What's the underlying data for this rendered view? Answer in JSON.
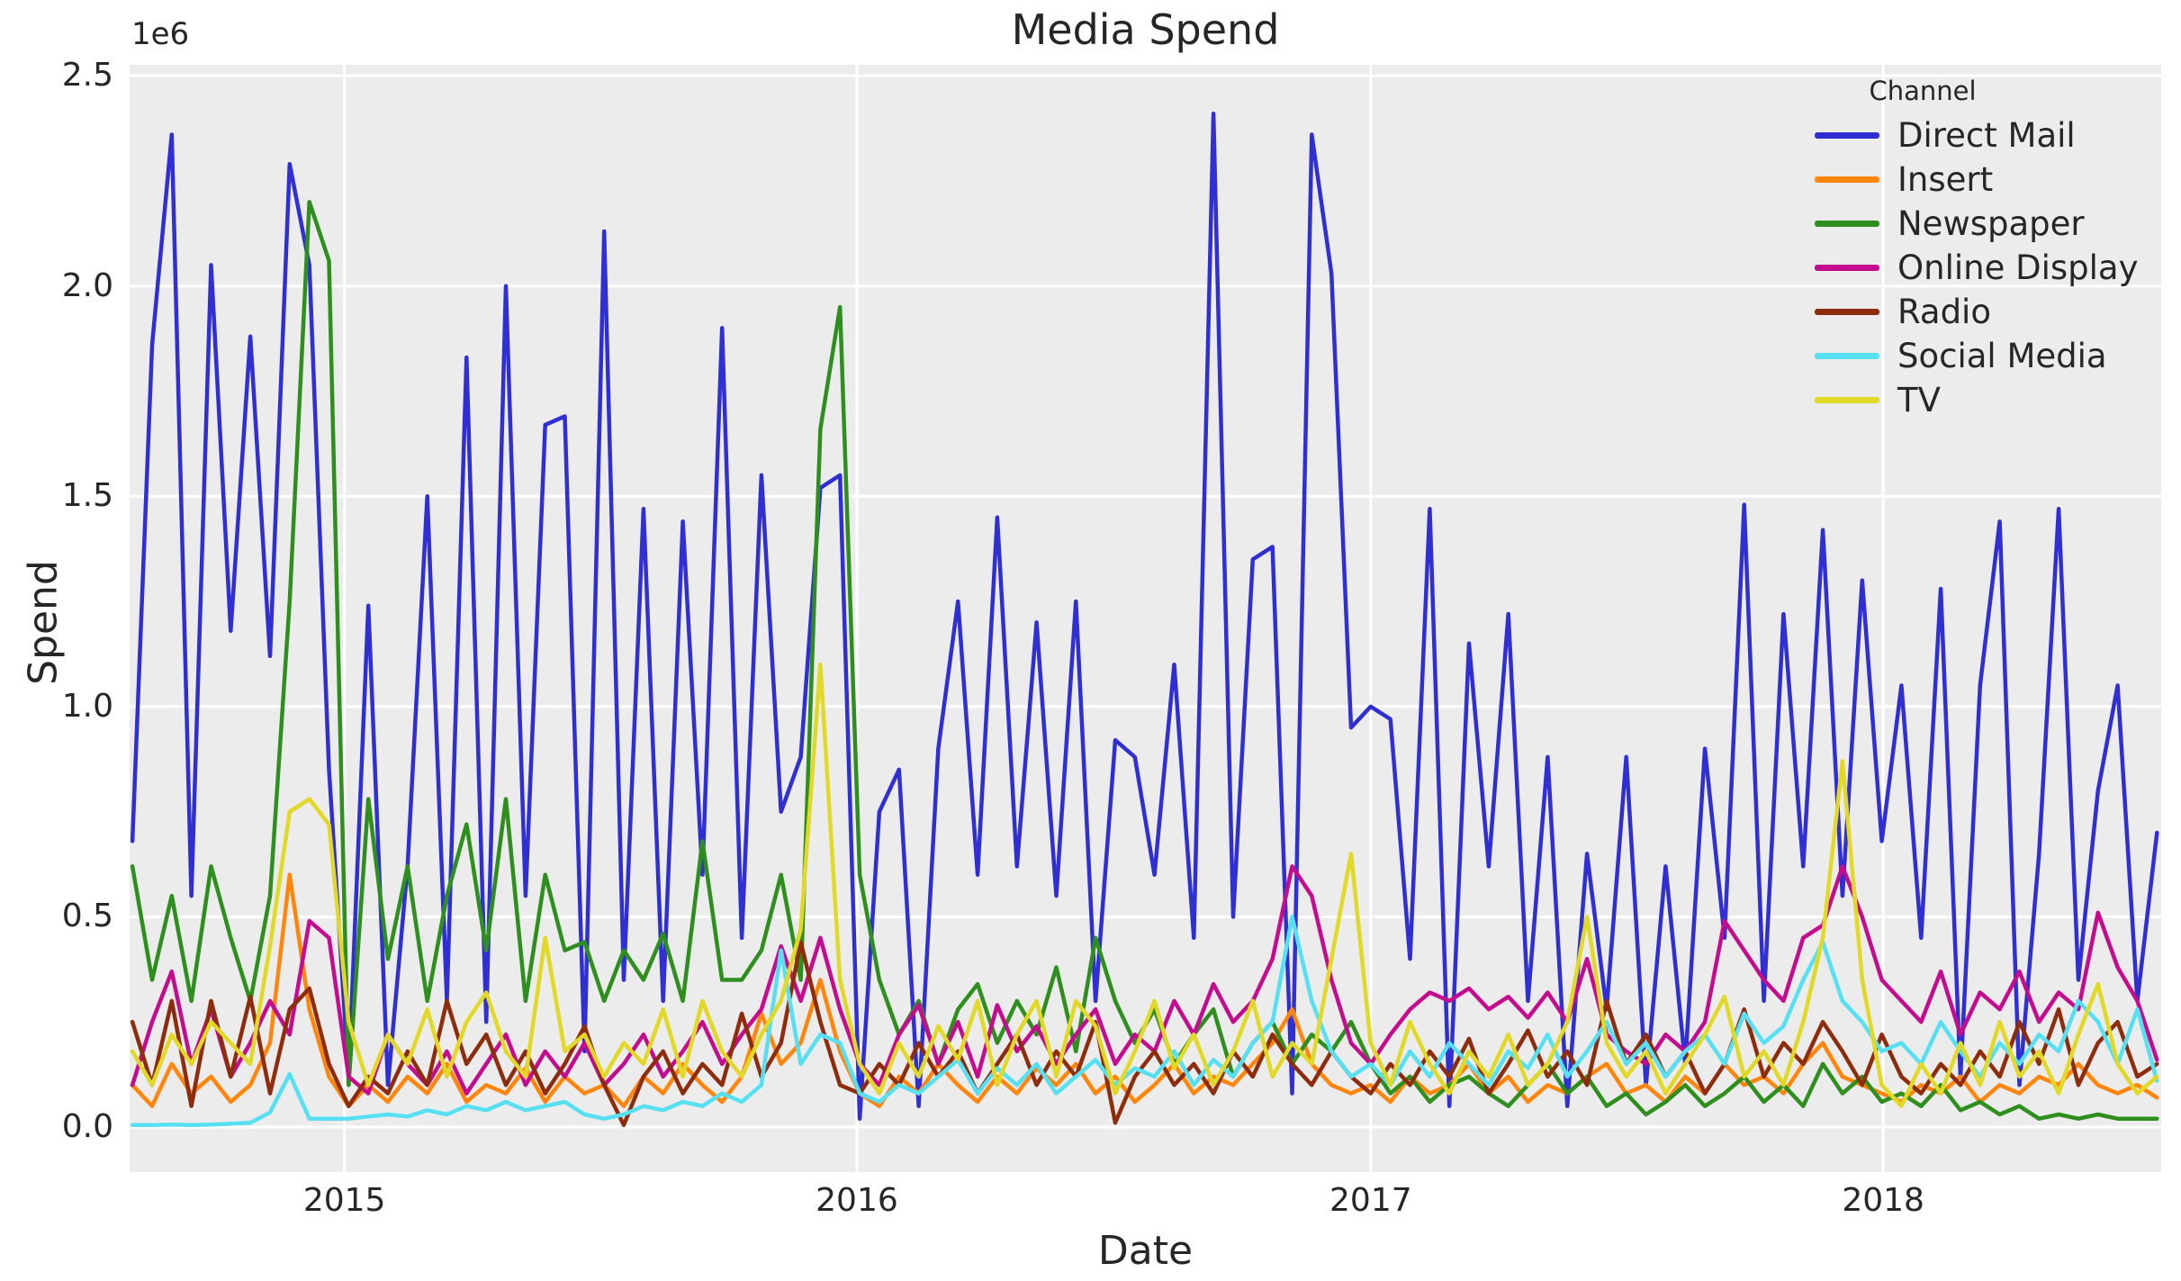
{
  "chart_data": {
    "type": "line",
    "title": "Media Spend",
    "xlabel": "Date",
    "ylabel": "Spend",
    "y_offset_label": "1e6",
    "legend_title": "Channel",
    "legend_position": "upper right",
    "grid": true,
    "plot_background": "#ececec",
    "grid_color": "#ffffff",
    "text_color": "#262626",
    "ylim": [
      -107000,
      2526000
    ],
    "yticks": [
      0,
      500000,
      1000000,
      1500000,
      2000000,
      2500000
    ],
    "ytick_labels": [
      "0.0",
      "0.5",
      "1.0",
      "1.5",
      "2.0",
      "2.5"
    ],
    "xlim": [
      "2014-08-01",
      "2018-07-18"
    ],
    "xticks": [
      "2015-01-01",
      "2016-01-01",
      "2017-01-01",
      "2018-01-01"
    ],
    "xtick_labels": [
      "2015",
      "2016",
      "2017",
      "2018"
    ],
    "x": [
      "2014-08-03",
      "2014-08-17",
      "2014-08-31",
      "2014-09-14",
      "2014-09-28",
      "2014-10-12",
      "2014-10-26",
      "2014-11-09",
      "2014-11-23",
      "2014-12-07",
      "2014-12-21",
      "2015-01-04",
      "2015-01-18",
      "2015-02-01",
      "2015-02-15",
      "2015-03-01",
      "2015-03-15",
      "2015-03-29",
      "2015-04-12",
      "2015-04-26",
      "2015-05-10",
      "2015-05-24",
      "2015-06-07",
      "2015-06-21",
      "2015-07-05",
      "2015-07-19",
      "2015-08-02",
      "2015-08-16",
      "2015-08-30",
      "2015-09-13",
      "2015-09-27",
      "2015-10-11",
      "2015-10-25",
      "2015-11-08",
      "2015-11-22",
      "2015-12-06",
      "2015-12-20",
      "2016-01-03",
      "2016-01-17",
      "2016-01-31",
      "2016-02-14",
      "2016-02-28",
      "2016-03-13",
      "2016-03-27",
      "2016-04-10",
      "2016-04-24",
      "2016-05-08",
      "2016-05-22",
      "2016-06-05",
      "2016-06-19",
      "2016-07-03",
      "2016-07-17",
      "2016-07-31",
      "2016-08-14",
      "2016-08-28",
      "2016-09-11",
      "2016-09-25",
      "2016-10-09",
      "2016-10-23",
      "2016-11-06",
      "2016-11-20",
      "2016-12-04",
      "2016-12-18",
      "2017-01-01",
      "2017-01-15",
      "2017-01-29",
      "2017-02-12",
      "2017-02-26",
      "2017-03-12",
      "2017-03-26",
      "2017-04-09",
      "2017-04-23",
      "2017-05-07",
      "2017-05-21",
      "2017-06-04",
      "2017-06-18",
      "2017-07-02",
      "2017-07-16",
      "2017-07-30",
      "2017-08-13",
      "2017-08-27",
      "2017-09-10",
      "2017-09-24",
      "2017-10-08",
      "2017-10-22",
      "2017-11-05",
      "2017-11-19",
      "2017-12-03",
      "2017-12-17",
      "2017-12-31",
      "2018-01-14",
      "2018-01-28",
      "2018-02-11",
      "2018-02-25",
      "2018-03-11",
      "2018-03-25",
      "2018-04-08",
      "2018-04-22",
      "2018-05-06",
      "2018-05-20",
      "2018-06-03",
      "2018-06-17",
      "2018-07-01",
      "2018-07-15"
    ],
    "series": [
      {
        "name": "Direct Mail",
        "color": "#2f2fd3",
        "values": [
          680000,
          1860000,
          2360000,
          550000,
          2050000,
          1180000,
          1880000,
          1120000,
          2290000,
          2050000,
          850000,
          120000,
          1240000,
          100000,
          620000,
          1500000,
          300000,
          1830000,
          250000,
          2000000,
          550000,
          1670000,
          1690000,
          180000,
          2130000,
          350000,
          1470000,
          300000,
          1440000,
          600000,
          1900000,
          450000,
          1550000,
          750000,
          880000,
          1520000,
          1550000,
          20000,
          750000,
          850000,
          50000,
          900000,
          1250000,
          600000,
          1450000,
          620000,
          1200000,
          550000,
          1250000,
          300000,
          920000,
          880000,
          600000,
          1100000,
          450000,
          2410000,
          500000,
          1350000,
          1380000,
          80000,
          2360000,
          2030000,
          950000,
          1000000,
          970000,
          400000,
          1470000,
          50000,
          1150000,
          620000,
          1220000,
          300000,
          880000,
          50000,
          650000,
          280000,
          880000,
          100000,
          620000,
          150000,
          900000,
          450000,
          1480000,
          300000,
          1220000,
          620000,
          1420000,
          550000,
          1300000,
          680000,
          1050000,
          450000,
          1280000,
          120000,
          1050000,
          1440000,
          100000,
          650000,
          1470000,
          350000,
          800000,
          1050000,
          300000,
          700000
        ]
      },
      {
        "name": "Insert",
        "color": "#ff860d",
        "values": [
          100000,
          50000,
          150000,
          80000,
          120000,
          60000,
          100000,
          200000,
          600000,
          280000,
          120000,
          50000,
          100000,
          60000,
          120000,
          80000,
          150000,
          60000,
          100000,
          80000,
          140000,
          60000,
          120000,
          80000,
          100000,
          50000,
          120000,
          80000,
          150000,
          100000,
          60000,
          120000,
          270000,
          150000,
          200000,
          350000,
          180000,
          80000,
          50000,
          120000,
          80000,
          150000,
          100000,
          60000,
          120000,
          80000,
          140000,
          100000,
          150000,
          80000,
          120000,
          60000,
          100000,
          150000,
          80000,
          120000,
          100000,
          150000,
          200000,
          280000,
          150000,
          100000,
          80000,
          100000,
          60000,
          120000,
          80000,
          100000,
          150000,
          80000,
          120000,
          60000,
          100000,
          80000,
          120000,
          150000,
          80000,
          100000,
          60000,
          120000,
          80000,
          150000,
          100000,
          120000,
          80000,
          150000,
          200000,
          120000,
          100000,
          80000,
          60000,
          100000,
          80000,
          120000,
          60000,
          100000,
          80000,
          120000,
          100000,
          150000,
          100000,
          80000,
          100000,
          70000
        ]
      },
      {
        "name": "Newspaper",
        "color": "#2f8f1e",
        "values": [
          620000,
          350000,
          550000,
          300000,
          620000,
          450000,
          300000,
          550000,
          1250000,
          2200000,
          2060000,
          100000,
          780000,
          400000,
          620000,
          300000,
          550000,
          720000,
          420000,
          780000,
          300000,
          600000,
          420000,
          440000,
          300000,
          420000,
          350000,
          460000,
          300000,
          680000,
          350000,
          350000,
          420000,
          600000,
          350000,
          1660000,
          1950000,
          600000,
          350000,
          220000,
          300000,
          150000,
          280000,
          340000,
          200000,
          300000,
          220000,
          380000,
          180000,
          450000,
          300000,
          200000,
          280000,
          150000,
          220000,
          280000,
          120000,
          200000,
          250000,
          150000,
          220000,
          180000,
          250000,
          150000,
          80000,
          120000,
          60000,
          100000,
          120000,
          80000,
          50000,
          100000,
          150000,
          80000,
          120000,
          50000,
          80000,
          30000,
          60000,
          100000,
          50000,
          80000,
          120000,
          60000,
          100000,
          50000,
          150000,
          80000,
          120000,
          60000,
          80000,
          50000,
          100000,
          40000,
          60000,
          30000,
          50000,
          20000,
          30000,
          20000,
          30000,
          20000,
          20000,
          20000
        ]
      },
      {
        "name": "Online Display",
        "color": "#c40d8e",
        "values": [
          100000,
          250000,
          370000,
          150000,
          280000,
          120000,
          200000,
          300000,
          220000,
          490000,
          450000,
          120000,
          80000,
          220000,
          150000,
          100000,
          180000,
          80000,
          150000,
          220000,
          100000,
          180000,
          120000,
          200000,
          100000,
          150000,
          220000,
          120000,
          180000,
          250000,
          150000,
          220000,
          280000,
          430000,
          300000,
          450000,
          280000,
          150000,
          100000,
          220000,
          290000,
          150000,
          250000,
          120000,
          290000,
          180000,
          240000,
          150000,
          220000,
          280000,
          150000,
          220000,
          180000,
          300000,
          220000,
          340000,
          250000,
          300000,
          400000,
          620000,
          550000,
          350000,
          200000,
          150000,
          220000,
          280000,
          320000,
          300000,
          330000,
          280000,
          310000,
          260000,
          320000,
          250000,
          400000,
          220000,
          180000,
          150000,
          220000,
          180000,
          250000,
          490000,
          420000,
          350000,
          300000,
          450000,
          480000,
          620000,
          500000,
          350000,
          300000,
          250000,
          370000,
          220000,
          320000,
          280000,
          370000,
          250000,
          320000,
          280000,
          510000,
          380000,
          300000,
          160000
        ]
      },
      {
        "name": "Radio",
        "color": "#8e2c0e",
        "values": [
          250000,
          100000,
          300000,
          50000,
          300000,
          120000,
          310000,
          80000,
          280000,
          330000,
          150000,
          50000,
          120000,
          80000,
          180000,
          100000,
          300000,
          150000,
          220000,
          100000,
          180000,
          80000,
          150000,
          240000,
          100000,
          5000,
          120000,
          180000,
          80000,
          150000,
          100000,
          270000,
          120000,
          200000,
          440000,
          250000,
          100000,
          80000,
          150000,
          100000,
          200000,
          120000,
          180000,
          80000,
          150000,
          220000,
          100000,
          180000,
          120000,
          250000,
          10000,
          120000,
          180000,
          100000,
          150000,
          80000,
          180000,
          120000,
          220000,
          150000,
          100000,
          180000,
          120000,
          80000,
          150000,
          100000,
          180000,
          120000,
          210000,
          80000,
          150000,
          230000,
          120000,
          180000,
          100000,
          300000,
          150000,
          220000,
          120000,
          180000,
          80000,
          150000,
          280000,
          120000,
          200000,
          150000,
          250000,
          180000,
          100000,
          220000,
          120000,
          80000,
          150000,
          100000,
          180000,
          120000,
          250000,
          150000,
          280000,
          100000,
          200000,
          250000,
          120000,
          150000
        ]
      },
      {
        "name": "Social Media",
        "color": "#57e0f2",
        "values": [
          5000,
          5000,
          6000,
          5000,
          6000,
          8000,
          10000,
          35000,
          126000,
          20000,
          20000,
          20000,
          25000,
          30000,
          25000,
          40000,
          30000,
          50000,
          40000,
          60000,
          40000,
          50000,
          60000,
          30000,
          20000,
          30000,
          50000,
          40000,
          60000,
          50000,
          80000,
          60000,
          100000,
          420000,
          150000,
          220000,
          200000,
          80000,
          60000,
          100000,
          80000,
          120000,
          160000,
          80000,
          140000,
          100000,
          150000,
          80000,
          120000,
          160000,
          100000,
          140000,
          120000,
          180000,
          100000,
          160000,
          120000,
          200000,
          250000,
          500000,
          300000,
          180000,
          120000,
          150000,
          100000,
          180000,
          120000,
          200000,
          150000,
          100000,
          180000,
          140000,
          220000,
          120000,
          180000,
          250000,
          150000,
          200000,
          120000,
          180000,
          220000,
          150000,
          270000,
          200000,
          240000,
          350000,
          440000,
          300000,
          250000,
          180000,
          200000,
          150000,
          250000,
          180000,
          120000,
          200000,
          150000,
          220000,
          180000,
          300000,
          250000,
          150000,
          280000,
          110000
        ]
      },
      {
        "name": "TV",
        "color": "#e2d826",
        "values": [
          180000,
          100000,
          220000,
          150000,
          250000,
          200000,
          150000,
          430000,
          750000,
          780000,
          720000,
          250000,
          100000,
          220000,
          150000,
          280000,
          120000,
          250000,
          320000,
          180000,
          120000,
          450000,
          180000,
          220000,
          120000,
          200000,
          150000,
          280000,
          120000,
          300000,
          180000,
          120000,
          220000,
          300000,
          470000,
          1100000,
          350000,
          150000,
          80000,
          200000,
          120000,
          240000,
          160000,
          300000,
          100000,
          220000,
          300000,
          120000,
          300000,
          240000,
          80000,
          180000,
          300000,
          140000,
          220000,
          100000,
          180000,
          300000,
          120000,
          200000,
          150000,
          400000,
          650000,
          200000,
          100000,
          250000,
          150000,
          80000,
          180000,
          120000,
          220000,
          100000,
          150000,
          250000,
          500000,
          200000,
          120000,
          180000,
          80000,
          150000,
          220000,
          310000,
          120000,
          180000,
          100000,
          250000,
          450000,
          870000,
          350000,
          100000,
          50000,
          150000,
          80000,
          200000,
          100000,
          250000,
          120000,
          180000,
          80000,
          220000,
          340000,
          150000,
          80000,
          120000
        ]
      }
    ]
  }
}
